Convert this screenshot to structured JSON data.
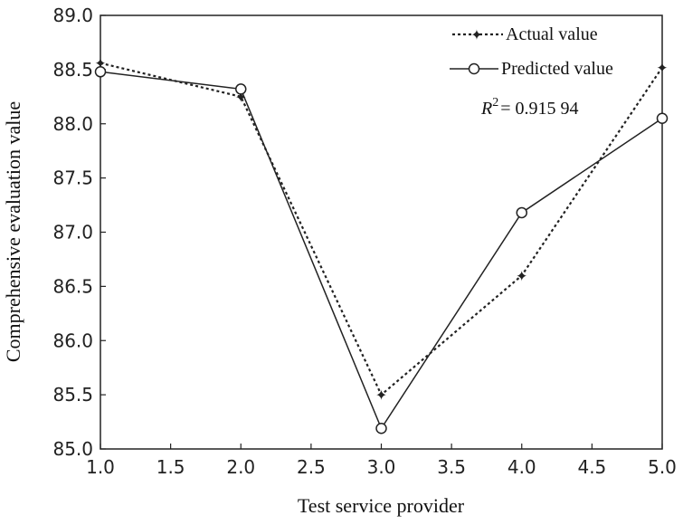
{
  "chart_data": {
    "type": "line",
    "xlabel": "Test service provider",
    "ylabel": "Comprehensive evaluation value",
    "xlim": [
      1.0,
      5.0
    ],
    "ylim": [
      85.0,
      89.0
    ],
    "x_ticks": [
      "1.0",
      "1.5",
      "2.0",
      "2.5",
      "3.0",
      "3.5",
      "4.0",
      "4.5",
      "5.0"
    ],
    "y_ticks": [
      "85.0",
      "85.5",
      "86.0",
      "86.5",
      "87.0",
      "87.5",
      "88.0",
      "88.5",
      "89.0"
    ],
    "x": [
      1,
      2,
      3,
      4,
      5
    ],
    "series": [
      {
        "name": "Actual value",
        "values": [
          88.56,
          88.25,
          85.5,
          86.6,
          88.52
        ],
        "style": "dotted",
        "marker": "star",
        "color": "#222222"
      },
      {
        "name": "Predicted value",
        "values": [
          88.48,
          88.32,
          85.19,
          87.18,
          88.05
        ],
        "style": "solid",
        "marker": "circle",
        "color": "#222222"
      }
    ],
    "annotation": {
      "r2_var": "R",
      "r2_sup": "2",
      "r2_value": "= 0.915 94"
    },
    "legend_position": "top-right",
    "grid": false
  }
}
